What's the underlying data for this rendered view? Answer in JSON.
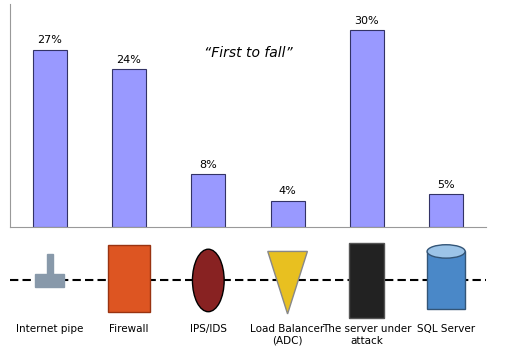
{
  "chart_data": {
    "type": "bar",
    "categories": [
      "Internet pipe",
      "Firewall",
      "IPS/IDS",
      "Load Balancer\n(ADC)",
      "The server under\nattack",
      "SQL Server"
    ],
    "values": [
      27,
      24,
      8,
      4,
      30,
      5
    ],
    "value_labels": [
      "27%",
      "24%",
      "8%",
      "4%",
      "30%",
      "5%"
    ],
    "data_labels": true,
    "color": "#9999ff",
    "ylim": [
      0,
      34
    ],
    "yticks": [],
    "grid": false,
    "tick_labels": "x",
    "annotations": [
      "“First to fall”"
    ]
  }
}
